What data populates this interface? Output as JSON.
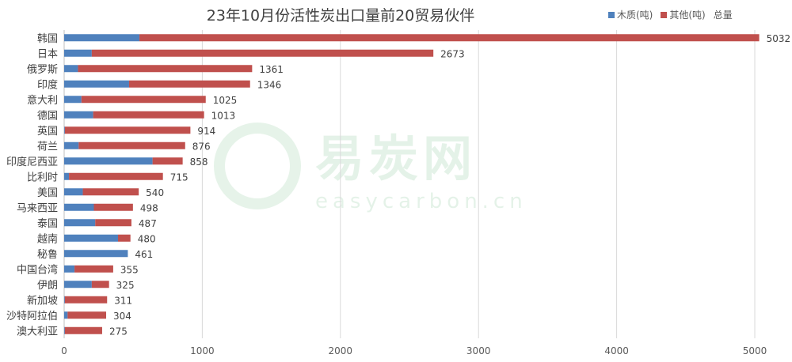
{
  "chart_data": {
    "type": "bar",
    "orientation": "horizontal",
    "stacked": true,
    "title": "23年10月份活性炭出口量前20贸易伙伴",
    "categories": [
      "韩国",
      "日本",
      "俄罗斯",
      "印度",
      "意大利",
      "德国",
      "英国",
      "荷兰",
      "印度尼西亚",
      "比利时",
      "美国",
      "马来西亚",
      "泰国",
      "越南",
      "秘鲁",
      "中国台湾",
      "伊朗",
      "新加坡",
      "沙特阿拉伯",
      "澳大利亚"
    ],
    "series": [
      {
        "name": "木质(吨)",
        "color": "#4f81bd",
        "values": [
          545,
          200,
          100,
          470,
          125,
          210,
          5,
          105,
          640,
          35,
          135,
          215,
          225,
          390,
          461,
          75,
          200,
          5,
          25,
          5
        ]
      },
      {
        "name": "其他(吨)",
        "color": "#c0504d",
        "values": [
          4487,
          2473,
          1261,
          876,
          900,
          803,
          909,
          771,
          218,
          680,
          405,
          283,
          262,
          90,
          0,
          280,
          125,
          306,
          279,
          270
        ]
      }
    ],
    "totals": [
      5032,
      2673,
      1361,
      1346,
      1025,
      1013,
      914,
      876,
      858,
      715,
      540,
      498,
      487,
      480,
      461,
      355,
      325,
      311,
      304,
      275
    ],
    "legend_total_label": "总量",
    "xlim": [
      0,
      5000
    ],
    "xticks": [
      0,
      1000,
      2000,
      3000,
      4000,
      5000
    ],
    "grid": "vertical",
    "legend_position": "top-right",
    "watermark": {
      "main": "易炭网",
      "sub": "easycarbon.cn"
    }
  }
}
